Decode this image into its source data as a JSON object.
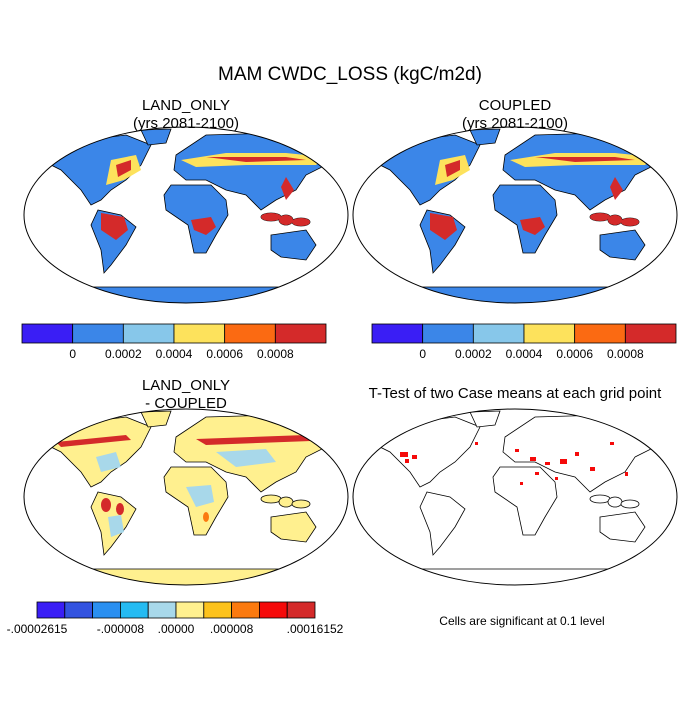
{
  "title": "MAM CWDC_LOSS (kgC/m2d)",
  "panels": [
    {
      "title": "LAND_ONLY",
      "subtitle": "(yrs 2081-2100)",
      "colorbar": {
        "colors": [
          "#3a1ef5",
          "#3b86e8",
          "#87c7ea",
          "#fde25c",
          "#fb6a12",
          "#d42a2a"
        ],
        "labels": [
          "0",
          "0.0002",
          "0.0004",
          "0.0006",
          "0.0008"
        ]
      }
    },
    {
      "title": "COUPLED",
      "subtitle": "(yrs 2081-2100)",
      "colorbar": {
        "colors": [
          "#3a1ef5",
          "#3b86e8",
          "#87c7ea",
          "#fde25c",
          "#fb6a12",
          "#d42a2a"
        ],
        "labels": [
          "0",
          "0.0002",
          "0.0004",
          "0.0006",
          "0.0008"
        ]
      }
    },
    {
      "title": "LAND_ONLY",
      "subtitle": "- COUPLED",
      "colorbar": {
        "colors": [
          "#3a1ef5",
          "#3353e0",
          "#2a8ff0",
          "#25bbf2",
          "#a8d8ea",
          "#fff08f",
          "#fcc21c",
          "#fb7a0f",
          "#f50a0a",
          "#d42a2a"
        ],
        "labels": [
          "-.00002615",
          "-.000008",
          ".00000",
          ".000008",
          ".00016152"
        ]
      }
    },
    {
      "title": "T-Test of two Case means at each grid point",
      "note": "Cells are significant at 0.1 level"
    }
  ]
}
